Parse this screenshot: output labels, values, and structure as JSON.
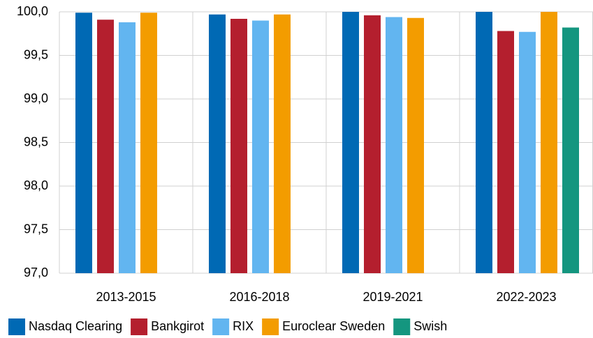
{
  "chart_data": {
    "type": "bar",
    "categories": [
      "2013-2015",
      "2016-2018",
      "2019-2021",
      "2022-2023"
    ],
    "series": [
      {
        "name": "Nasdaq Clearing",
        "color": "#0069b4",
        "values": [
          99.99,
          99.97,
          100.0,
          100.0
        ]
      },
      {
        "name": "Bankgirot",
        "color": "#b41f2e",
        "values": [
          99.91,
          99.92,
          99.96,
          99.78
        ]
      },
      {
        "name": "RIX",
        "color": "#62b5f0",
        "values": [
          99.88,
          99.9,
          99.94,
          99.77
        ]
      },
      {
        "name": "Euroclear Sweden",
        "color": "#f39c00",
        "values": [
          99.99,
          99.97,
          99.93,
          100.0
        ]
      },
      {
        "name": "Swish",
        "color": "#14967f",
        "values": [
          null,
          null,
          null,
          99.82
        ]
      }
    ],
    "ylim": [
      97.0,
      100.0
    ],
    "yticks": [
      {
        "value": 97.0,
        "label": "97,0"
      },
      {
        "value": 97.5,
        "label": "97,5"
      },
      {
        "value": 98.0,
        "label": "98,0"
      },
      {
        "value": 98.5,
        "label": "98,5"
      },
      {
        "value": 99.0,
        "label": "99,0"
      },
      {
        "value": 99.5,
        "label": "99,5"
      },
      {
        "value": 100.0,
        "label": "100,0"
      }
    ],
    "grid": true,
    "legend": "bottom"
  }
}
